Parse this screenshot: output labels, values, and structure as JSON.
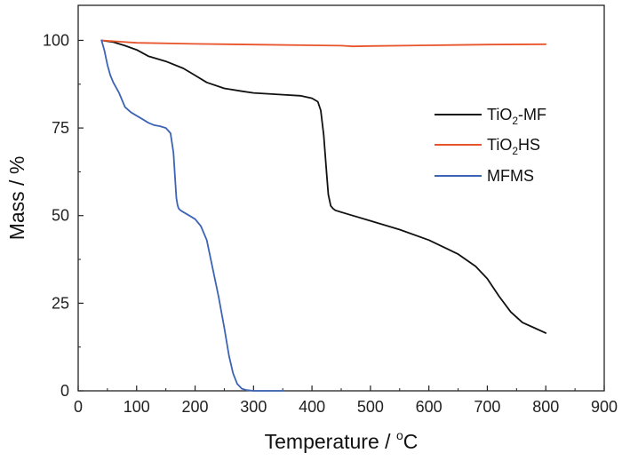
{
  "chart_data": {
    "type": "line",
    "title": "",
    "xlabel": "Temperature / °C",
    "xlabel_parts": {
      "main": "Temperature / ",
      "sup": "o",
      "unit": "C"
    },
    "ylabel": "Mass / %",
    "xlim": [
      0,
      900
    ],
    "ylim": [
      0,
      110
    ],
    "xticks": [
      0,
      100,
      200,
      300,
      400,
      500,
      600,
      700,
      800,
      900
    ],
    "yticks": [
      0,
      25,
      50,
      75,
      100
    ],
    "grid": false,
    "legend_position": "right",
    "series": [
      {
        "name": "TiO2-MF",
        "label_parts": {
          "base": "TiO",
          "sub": "2",
          "rest": "-MF"
        },
        "color": "#111111",
        "x": [
          40,
          60,
          80,
          100,
          120,
          150,
          180,
          200,
          220,
          250,
          280,
          300,
          350,
          380,
          400,
          410,
          415,
          420,
          425,
          428,
          432,
          436,
          440,
          460,
          500,
          550,
          600,
          650,
          680,
          700,
          720,
          740,
          760,
          780,
          800
        ],
        "y": [
          100,
          99.5,
          98.5,
          97.3,
          95.5,
          94.0,
          92.0,
          90.0,
          88.0,
          86.3,
          85.5,
          85.0,
          84.5,
          84.2,
          83.5,
          82.5,
          80.0,
          73.0,
          62.0,
          56.0,
          52.8,
          52.0,
          51.5,
          50.5,
          48.5,
          46.0,
          43.0,
          39.0,
          35.5,
          32.0,
          27.0,
          22.5,
          19.5,
          18.0,
          16.5
        ]
      },
      {
        "name": "TiO2HS",
        "label_parts": {
          "base": "TiO",
          "sub": "2",
          "rest": "HS"
        },
        "color": "#e8552c",
        "x": [
          40,
          100,
          200,
          300,
          400,
          450,
          470,
          500,
          600,
          700,
          800
        ],
        "y": [
          100,
          99.3,
          99.0,
          98.8,
          98.6,
          98.5,
          98.3,
          98.4,
          98.6,
          98.8,
          98.9
        ]
      },
      {
        "name": "MFMS",
        "label_parts": {
          "base": "MFMS",
          "sub": "",
          "rest": ""
        },
        "color": "#3d63b5",
        "x": [
          40,
          45,
          50,
          55,
          60,
          70,
          80,
          90,
          100,
          110,
          120,
          130,
          140,
          150,
          158,
          163,
          166,
          168,
          170,
          172,
          175,
          180,
          190,
          200,
          210,
          220,
          230,
          240,
          250,
          258,
          265,
          272,
          280,
          288,
          295,
          300,
          320,
          350
        ],
        "y": [
          100,
          97,
          93,
          90,
          88,
          85,
          81,
          79.5,
          78.5,
          77.5,
          76.5,
          75.8,
          75.5,
          75.0,
          73.5,
          68,
          60,
          55,
          53,
          52.0,
          51.5,
          51.0,
          50.0,
          49.0,
          47.0,
          43.0,
          35.0,
          27.0,
          18.0,
          10.0,
          5.0,
          2.0,
          0.6,
          0.2,
          0.1,
          0.0,
          0.0,
          0.0
        ]
      }
    ]
  }
}
